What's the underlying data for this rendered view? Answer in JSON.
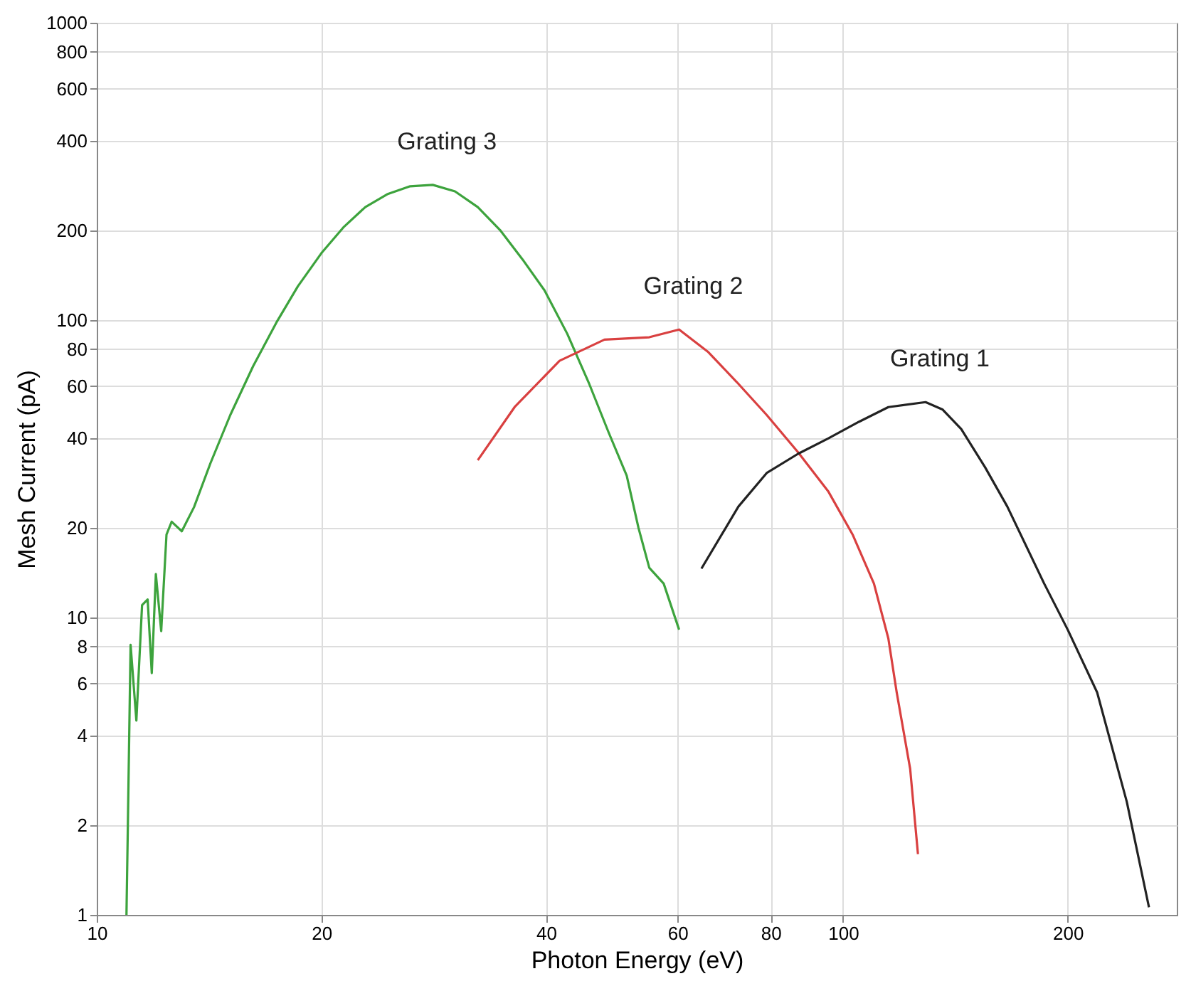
{
  "chart_data": {
    "type": "line",
    "xlabel": "Photon Energy (eV)",
    "ylabel": "Mesh Current (pA)",
    "log": "xy",
    "grid": true,
    "legend": false,
    "xlim": [
      10,
      280
    ],
    "ylim": [
      1,
      1000
    ],
    "xticks": [
      10,
      20,
      40,
      60,
      80,
      100,
      200
    ],
    "yticks": [
      1,
      2,
      4,
      6,
      8,
      10,
      20,
      40,
      60,
      80,
      100,
      200,
      400,
      600,
      800,
      1000
    ],
    "series": [
      {
        "name": "Grating 3",
        "color": "#3da33d",
        "x": [
          10.96,
          11.0,
          11.1,
          11.3,
          11.5,
          11.7,
          11.85,
          12.0,
          12.2,
          12.4,
          12.6,
          13.0,
          13.5,
          14.2,
          15.1,
          16.2,
          17.4,
          18.6,
          20.0,
          21.4,
          22.9,
          24.5,
          26.3,
          28.2,
          30.2,
          32.4,
          34.7,
          37.2,
          39.8,
          42.7,
          45.7,
          48.5,
          51.3,
          53.2,
          55.0,
          57.5,
          60.3
        ],
        "values": [
          1.0,
          1.8,
          8.1,
          4.5,
          11.0,
          11.5,
          6.5,
          14.0,
          9.0,
          19.0,
          21.0,
          19.5,
          23.5,
          33.0,
          48.0,
          70.0,
          98.0,
          130.0,
          168.0,
          205.0,
          240.0,
          265.0,
          282.0,
          285.0,
          271.0,
          240.0,
          201.0,
          160.0,
          126.0,
          90.0,
          61.0,
          42.0,
          30.0,
          20.0,
          14.7,
          13.0,
          9.1
        ]
      },
      {
        "name": "Grating 2",
        "color": "#d94040",
        "x": [
          32.4,
          36.3,
          41.7,
          47.9,
          55.0,
          60.3,
          66.0,
          72.0,
          79.0,
          87.0,
          95.5,
          103.0,
          110.0,
          115.0,
          118.0,
          123.0,
          126.0
        ],
        "values": [
          33.8,
          51.0,
          73.0,
          86.0,
          87.6,
          93.0,
          78.0,
          62.0,
          48.0,
          36.0,
          26.6,
          19.0,
          13.0,
          8.5,
          5.6,
          3.1,
          1.6
        ]
      },
      {
        "name": "Grating 1",
        "color": "#222222",
        "x": [
          64.6,
          72.4,
          79.0,
          87.0,
          95.5,
          105.0,
          115.0,
          129.0,
          136.0,
          144.0,
          155.0,
          166.0,
          186.0,
          200.0,
          219.0,
          240.0,
          257.0
        ],
        "values": [
          14.6,
          23.6,
          30.6,
          35.5,
          40.0,
          45.5,
          51.0,
          53.0,
          50.0,
          43.0,
          32.0,
          23.6,
          13.0,
          9.1,
          5.6,
          2.4,
          1.06
        ]
      }
    ]
  }
}
